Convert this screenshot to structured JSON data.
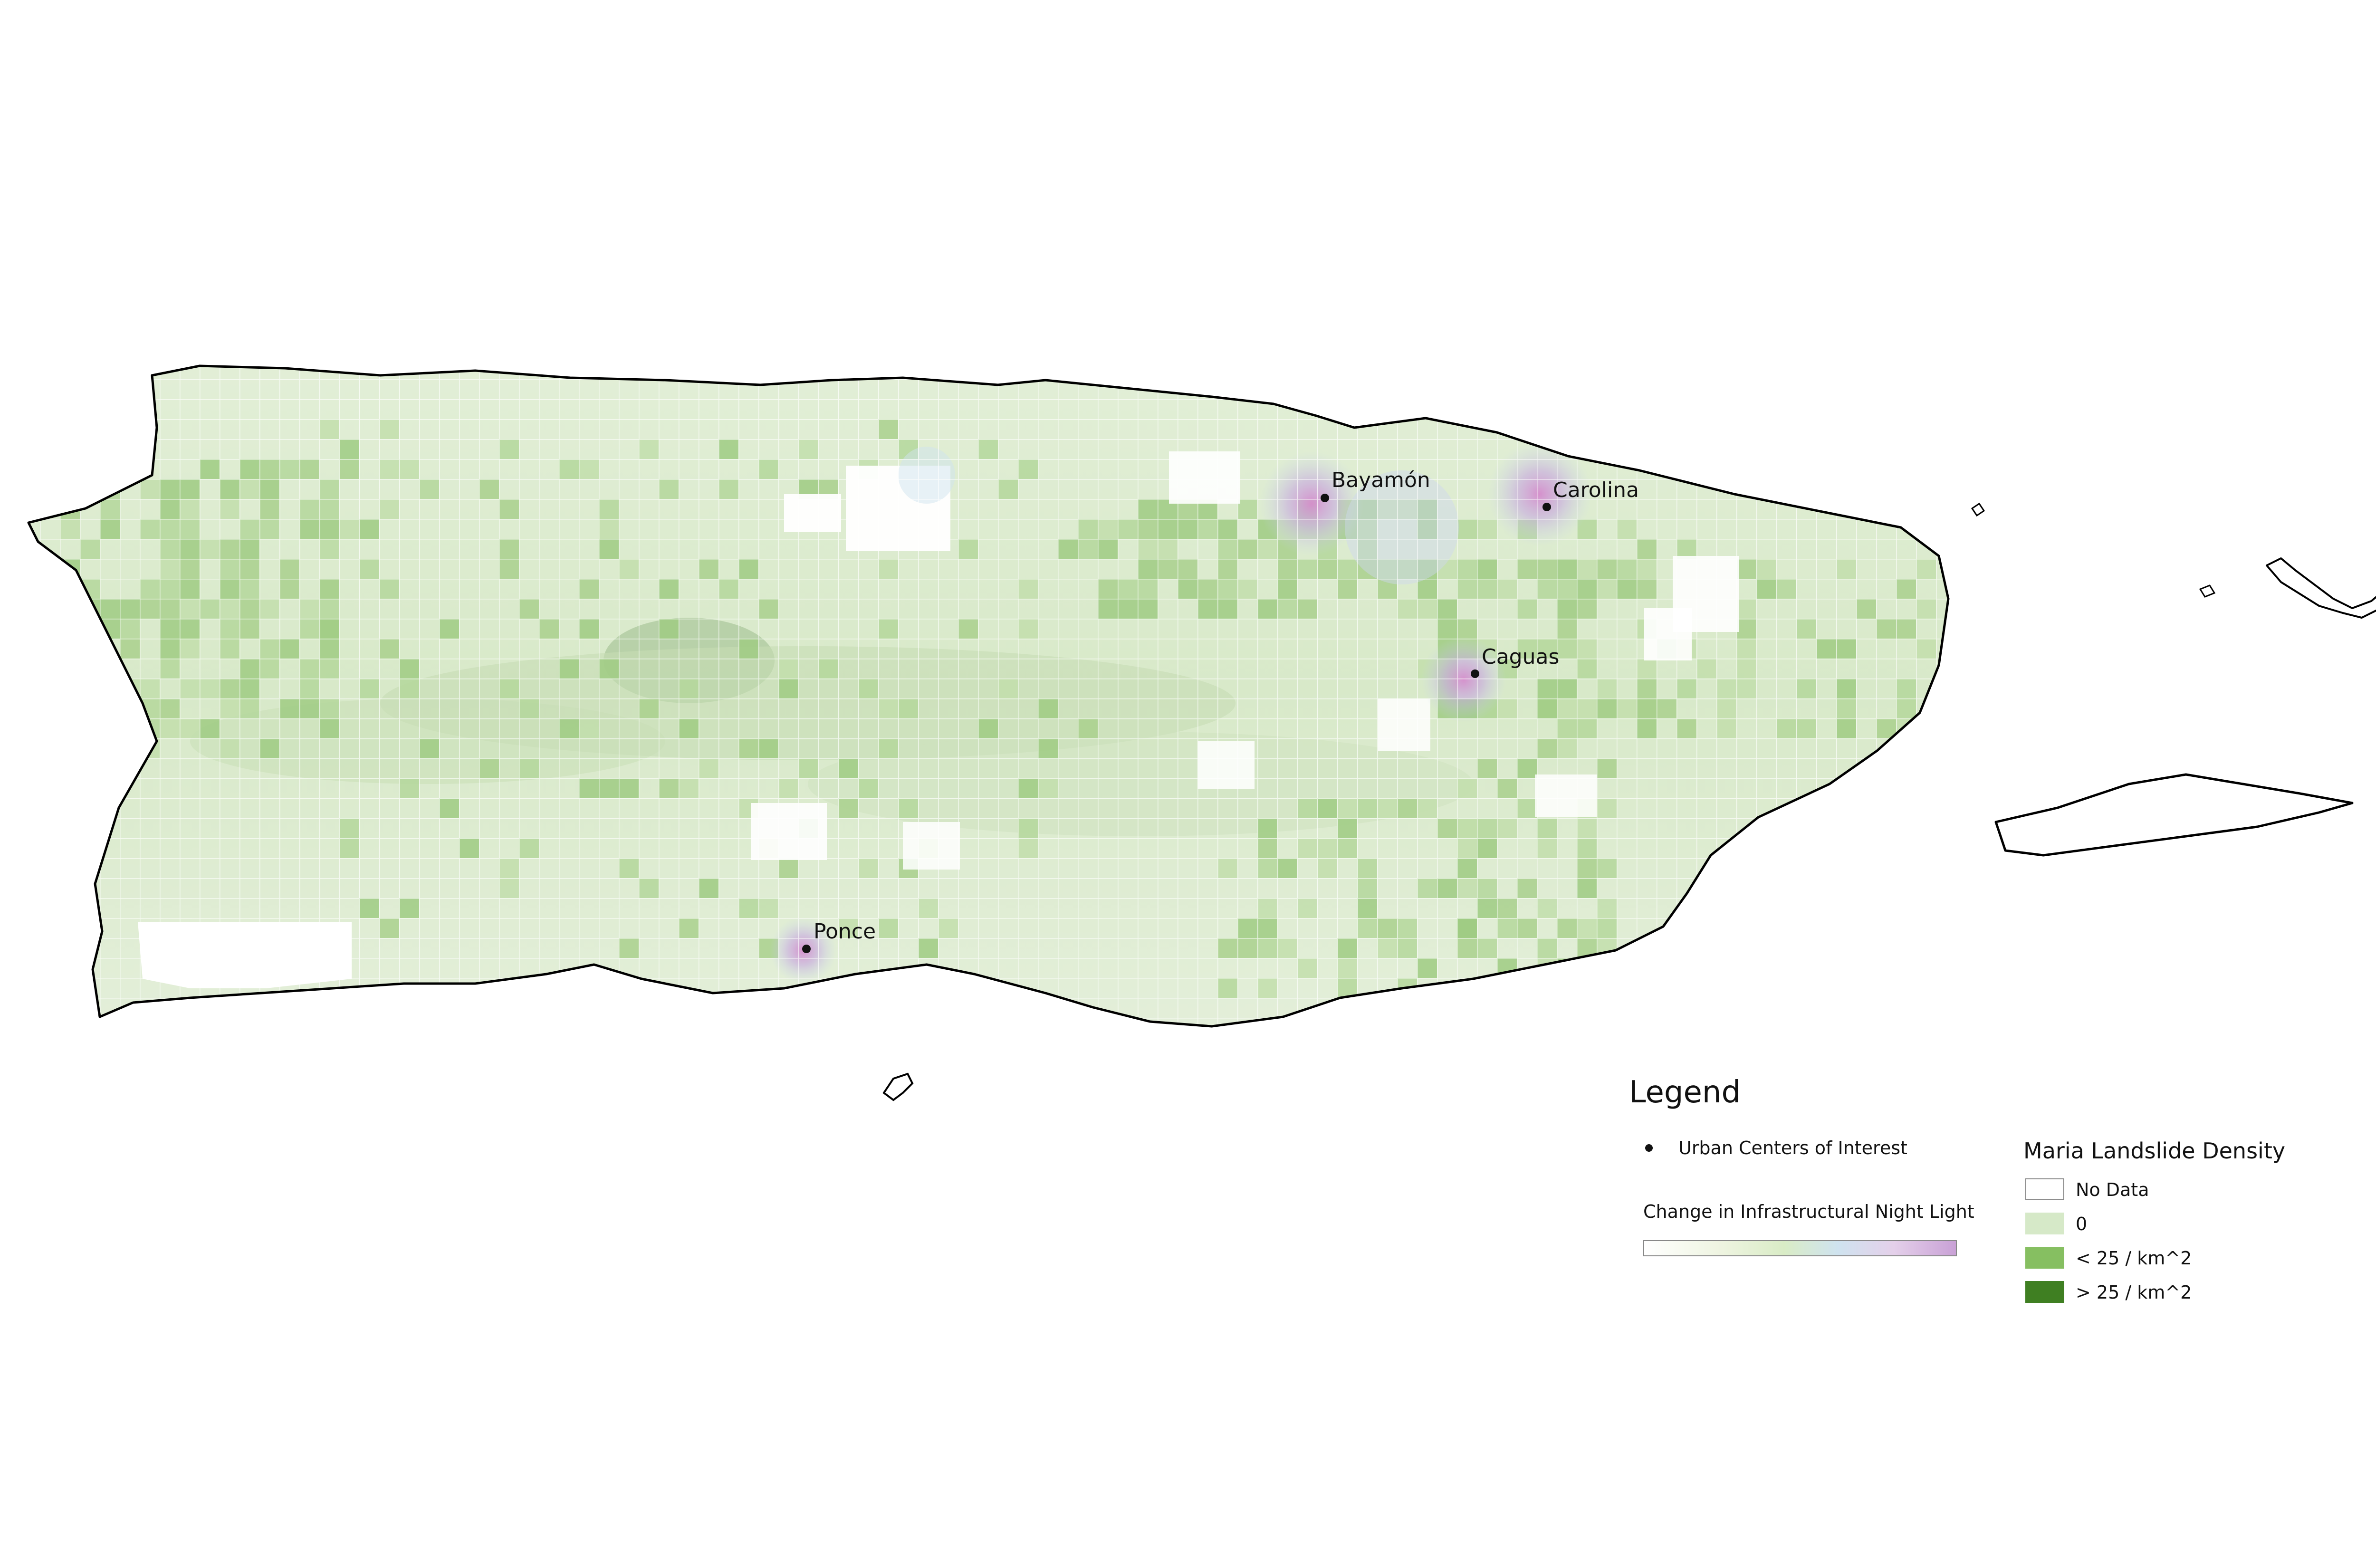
{
  "map": {
    "cities": [
      {
        "name": "Bayamón"
      },
      {
        "name": "Carolina"
      },
      {
        "name": "Caguas"
      },
      {
        "name": "Ponce"
      }
    ]
  },
  "legend": {
    "title": "Legend",
    "urban_centers_label": "Urban Centers of Interest",
    "night_light_label": "Change in Infrastructural Night Light",
    "night_light_colors": [
      "#ffffff",
      "#d9ecc6",
      "#cfe3ef",
      "#c9a1d6"
    ],
    "landslide": {
      "title": "Maria Landslide Density",
      "classes": [
        {
          "label": "No Data",
          "color": "#ffffff"
        },
        {
          "label": "0",
          "color": "#d6e9c8"
        },
        {
          "label": "< 25 / km^2",
          "color": "#86bf61"
        },
        {
          "label": "> 25 / km^2",
          "color": "#3f7f22"
        }
      ]
    }
  }
}
